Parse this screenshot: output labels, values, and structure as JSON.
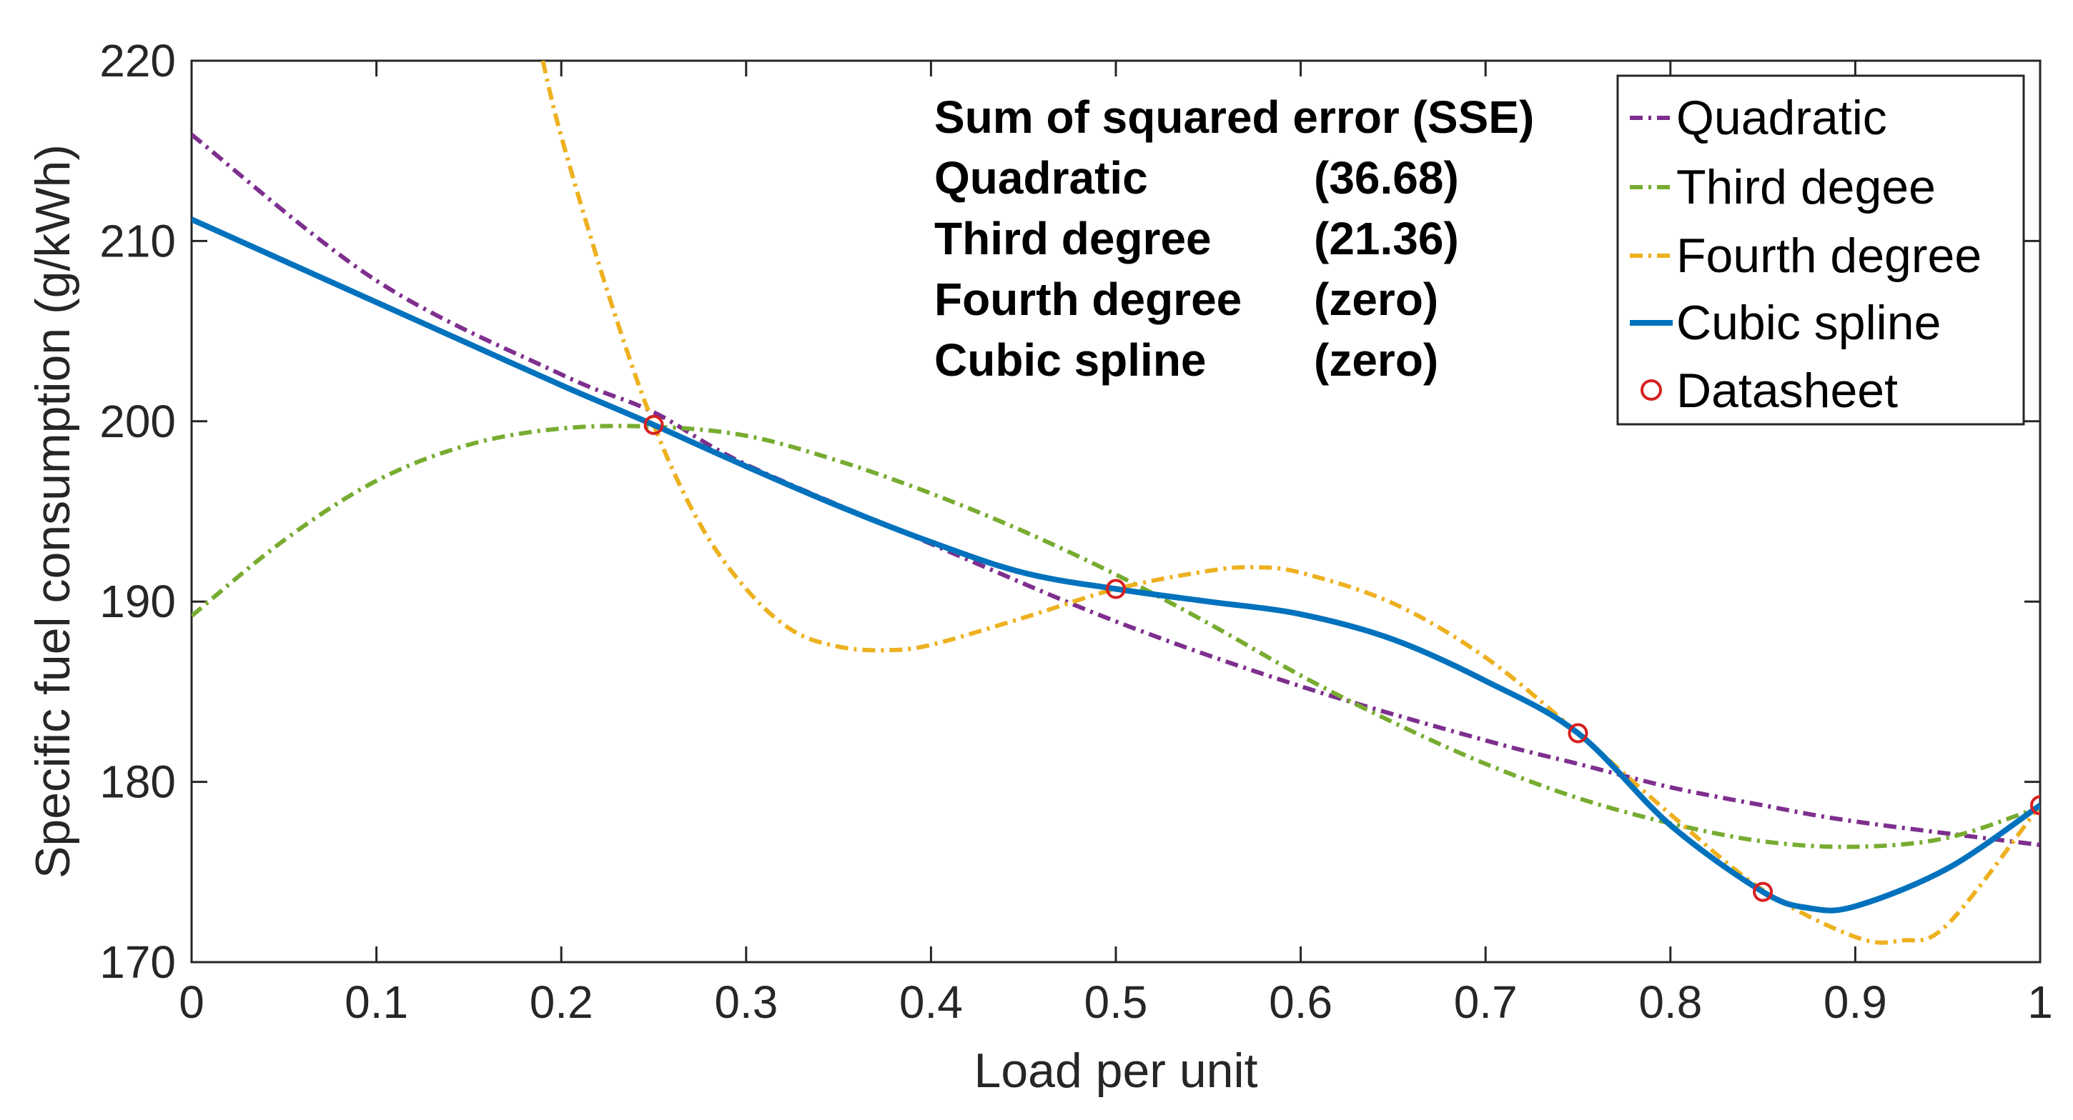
{
  "chart_data": {
    "type": "line",
    "xlabel": "Load per unit",
    "ylabel": "Specific fuel consumption (g/kWh)",
    "xlim": [
      0,
      1
    ],
    "ylim": [
      170,
      220
    ],
    "xticks": [
      0,
      0.1,
      0.2,
      0.3,
      0.4,
      0.5,
      0.6,
      0.7,
      0.8,
      0.9,
      1
    ],
    "xtick_labels": [
      "0",
      "0.1",
      "0.2",
      "0.3",
      "0.4",
      "0.5",
      "0.6",
      "0.7",
      "0.8",
      "0.9",
      "1"
    ],
    "yticks": [
      170,
      180,
      190,
      200,
      210,
      220
    ],
    "ytick_labels": [
      "170",
      "180",
      "190",
      "200",
      "210",
      "220"
    ],
    "grid": false,
    "legend_position": "top-right",
    "annotation": {
      "title": "Sum of squared error (SSE)",
      "rows": [
        {
          "name": "Quadratic",
          "value": "(36.68)"
        },
        {
          "name": "Third degree",
          "value": "(21.36)"
        },
        {
          "name": "Fourth degree",
          "value": "(zero)"
        },
        {
          "name": "Cubic spline",
          "value": "(zero)"
        }
      ]
    },
    "series": [
      {
        "name": "Quadratic",
        "style": "dashdot",
        "color": "#7E2F8E",
        "x": [
          0,
          0.1,
          0.2,
          0.25,
          0.3,
          0.4,
          0.5,
          0.6,
          0.7,
          0.75,
          0.8,
          0.85,
          0.9,
          1
        ],
        "y": [
          215.9,
          207.8,
          202.6,
          200.5,
          197.6,
          193.2,
          188.9,
          185.3,
          182.3,
          181.0,
          179.7,
          178.7,
          177.8,
          176.5
        ]
      },
      {
        "name": "Third degee",
        "style": "dashdot",
        "color": "#77AC30",
        "x": [
          0,
          0.05,
          0.1,
          0.15,
          0.2,
          0.25,
          0.3,
          0.35,
          0.4,
          0.45,
          0.5,
          0.55,
          0.6,
          0.65,
          0.7,
          0.75,
          0.8,
          0.85,
          0.9,
          0.95,
          1
        ],
        "y": [
          189.2,
          193.4,
          196.7,
          198.7,
          199.6,
          199.7,
          199.2,
          197.8,
          196.0,
          193.9,
          191.5,
          188.8,
          185.9,
          183.3,
          181.0,
          179.1,
          177.7,
          176.7,
          176.4,
          176.9,
          178.6
        ]
      },
      {
        "name": "Fourth degree",
        "style": "dashdot",
        "color": "#EDB120",
        "x": [
          0.19,
          0.2,
          0.225,
          0.25,
          0.275,
          0.3,
          0.325,
          0.35,
          0.375,
          0.4,
          0.45,
          0.5,
          0.55,
          0.575,
          0.6,
          0.65,
          0.7,
          0.75,
          0.8,
          0.85,
          0.9,
          0.925,
          0.95,
          1
        ],
        "y": [
          220,
          215.8,
          207.2,
          199.8,
          194.3,
          190.7,
          188.4,
          187.5,
          187.3,
          187.6,
          189.1,
          190.7,
          191.7,
          191.9,
          191.6,
          189.9,
          186.9,
          182.7,
          178.2,
          174.0,
          171.4,
          171.2,
          172.1,
          178.7
        ]
      },
      {
        "name": "Cubic spline",
        "style": "solid",
        "color": "#0072BD",
        "x": [
          0,
          0.05,
          0.1,
          0.15,
          0.2,
          0.25,
          0.3,
          0.35,
          0.4,
          0.45,
          0.5,
          0.55,
          0.6,
          0.65,
          0.7,
          0.75,
          0.8,
          0.85,
          0.875,
          0.9,
          0.95,
          1
        ],
        "y": [
          211.2,
          208.9,
          206.6,
          204.3,
          202.0,
          199.8,
          197.5,
          195.3,
          193.3,
          191.6,
          190.7,
          190.0,
          189.3,
          187.9,
          185.6,
          182.7,
          177.6,
          173.9,
          173.0,
          173.1,
          175.2,
          178.7
        ]
      },
      {
        "name": "Datasheet",
        "style": "marker",
        "color": "#D62020",
        "x": [
          0.25,
          0.5,
          0.75,
          0.85,
          1
        ],
        "y": [
          199.8,
          190.7,
          182.7,
          173.9,
          178.7
        ]
      }
    ]
  }
}
